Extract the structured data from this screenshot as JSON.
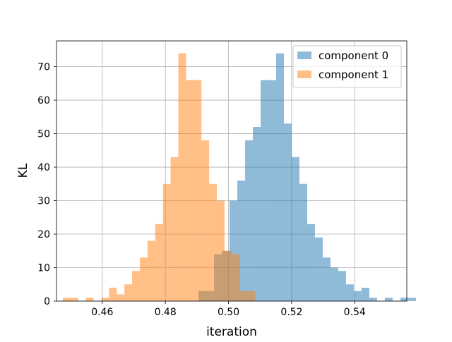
{
  "chart_data": {
    "type": "histogram",
    "xlabel": "iteration",
    "ylabel": "KL",
    "xlim": [
      0.4455,
      0.5565
    ],
    "ylim": [
      0,
      77.7
    ],
    "grid": true,
    "legend_position": "top-right",
    "x_ticks": [
      0.46,
      0.48,
      0.5,
      0.52,
      0.54
    ],
    "x_tick_labels": [
      "0.46",
      "0.48",
      "0.50",
      "0.52",
      "0.54"
    ],
    "y_ticks": [
      0,
      10,
      20,
      30,
      40,
      50,
      60,
      70
    ],
    "y_tick_labels": [
      "0",
      "10",
      "20",
      "30",
      "40",
      "50",
      "60",
      "70"
    ],
    "series": [
      {
        "name": "component 0",
        "color": "#1f77b4",
        "opacity": 0.5,
        "bin_start": 0.4905,
        "bin_width": 0.00246,
        "counts": [
          3,
          3,
          14,
          15,
          30,
          36,
          48,
          52,
          66,
          66,
          74,
          53,
          43,
          35,
          23,
          19,
          13,
          10,
          9,
          5,
          3,
          4,
          1,
          0,
          1,
          0,
          1,
          1
        ]
      },
      {
        "name": "component 1",
        "color": "#ff7f0e",
        "opacity": 0.5,
        "bin_start": 0.4475,
        "bin_width": 0.00244,
        "counts": [
          1,
          1,
          0,
          1,
          0,
          1,
          4,
          2,
          5,
          9,
          13,
          18,
          23,
          35,
          43,
          74,
          66,
          66,
          48,
          35,
          30,
          15,
          14,
          3,
          3
        ]
      }
    ]
  }
}
